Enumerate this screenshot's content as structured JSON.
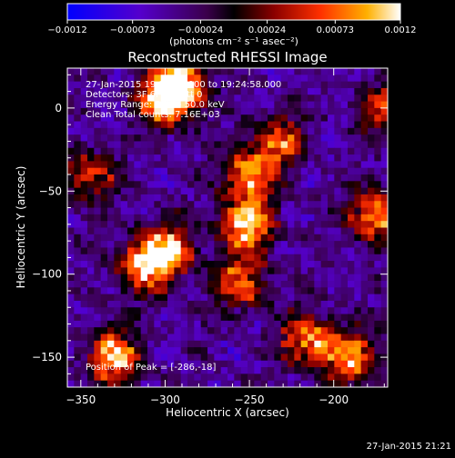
{
  "chart_data": {
    "type": "heatmap",
    "title": "Reconstructed RHESSI Image",
    "xlabel": "Heliocentric X (arcsec)",
    "ylabel": "Heliocentric Y (arcsec)",
    "xlim": [
      -358,
      -168
    ],
    "ylim": [
      -168,
      24
    ],
    "x_ticks": [
      -350,
      -300,
      -250,
      -200
    ],
    "x_tick_labels": [
      "−350",
      "−300",
      "−250",
      "−200"
    ],
    "y_ticks": [
      0,
      -50,
      -100,
      -150
    ],
    "y_tick_labels": [
      "0",
      "−50",
      "−100",
      "−150"
    ],
    "colorbar": {
      "range": [
        -0.0012,
        0.0012
      ],
      "ticks": [
        -0.0012,
        -0.00073,
        -0.00024,
        0.00024,
        0.00073,
        0.0012
      ],
      "tick_labels": [
        "−0.0012",
        "−0.00073",
        "−0.00024",
        "0.00024",
        "0.00073",
        "0.0012"
      ],
      "label": "(photons cm⁻² s⁻¹ asec⁻²)"
    },
    "info_lines": [
      "27-Jan-2015 19:21:04.000 to 19:24:58.000",
      "Detectors: 3F 6F 9F, Att 0",
      "Energy Range: 25.0 - 50.0 keV",
      "Clean    Total counts: 7.16E+03"
    ],
    "peak_label": "Position of Peak = [-286,-18]",
    "peak_position": [
      -286,
      -18
    ],
    "bright_sources": [
      {
        "x": -330,
        "y": -150,
        "intensity": 0.0011
      },
      {
        "x": -300,
        "y": 5,
        "intensity": 0.0012
      },
      {
        "x": -290,
        "y": 15,
        "intensity": 0.001
      },
      {
        "x": -312,
        "y": -95,
        "intensity": 0.0011
      },
      {
        "x": -298,
        "y": -85,
        "intensity": 0.0009
      },
      {
        "x": -252,
        "y": -70,
        "intensity": 0.0012
      },
      {
        "x": -250,
        "y": -40,
        "intensity": 0.0009
      },
      {
        "x": -255,
        "y": -105,
        "intensity": 0.0008
      },
      {
        "x": -215,
        "y": -140,
        "intensity": 0.001
      },
      {
        "x": -190,
        "y": -150,
        "intensity": 0.0009
      },
      {
        "x": -175,
        "y": -65,
        "intensity": 0.001
      },
      {
        "x": -232,
        "y": -20,
        "intensity": 0.0006
      },
      {
        "x": -345,
        "y": -40,
        "intensity": 0.0006
      },
      {
        "x": -170,
        "y": 0,
        "intensity": 0.0005
      }
    ]
  },
  "footer_timestamp": "27-Jan-2015 21:21"
}
